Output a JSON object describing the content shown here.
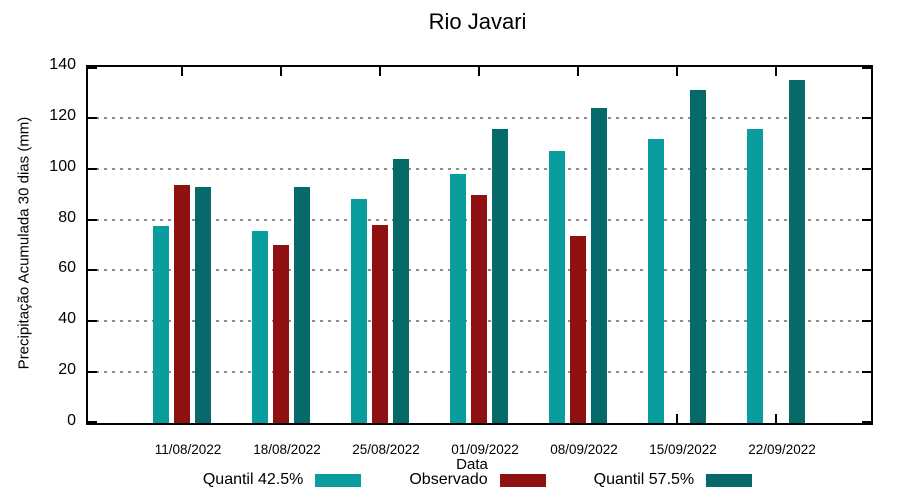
{
  "title": "Rio Javari",
  "chart_data": {
    "type": "bar",
    "title": "Rio Javari",
    "xlabel": "Data",
    "ylabel": "Precipitação Acumulada 30 dias (mm)",
    "ylim": [
      0,
      140
    ],
    "yticks": [
      0,
      20,
      40,
      60,
      80,
      100,
      120,
      140
    ],
    "grid": "horizontal dotted gridlines at 20,40,60,80,100,120",
    "legend_position": "bottom",
    "categories": [
      "11/08/2022",
      "18/08/2022",
      "25/08/2022",
      "01/09/2022",
      "08/09/2022",
      "15/09/2022",
      "22/09/2022"
    ],
    "series": [
      {
        "name": "Quantil 42.5%",
        "color": "#0a9d9d",
        "values": [
          77.5,
          75.5,
          88,
          98,
          107,
          111.5,
          115.5
        ]
      },
      {
        "name": "Observado",
        "color": "#8e1010",
        "values": [
          93.5,
          70,
          78,
          89.5,
          73.5,
          null,
          null
        ]
      },
      {
        "name": "Quantil 57.5%",
        "color": "#076a6a",
        "values": [
          93,
          93,
          104,
          115.5,
          124,
          131,
          135
        ]
      }
    ],
    "colors": {
      "grid": "#8f8f8f",
      "axis": "#000000",
      "text": "#000000",
      "background": "#ffffff"
    }
  }
}
